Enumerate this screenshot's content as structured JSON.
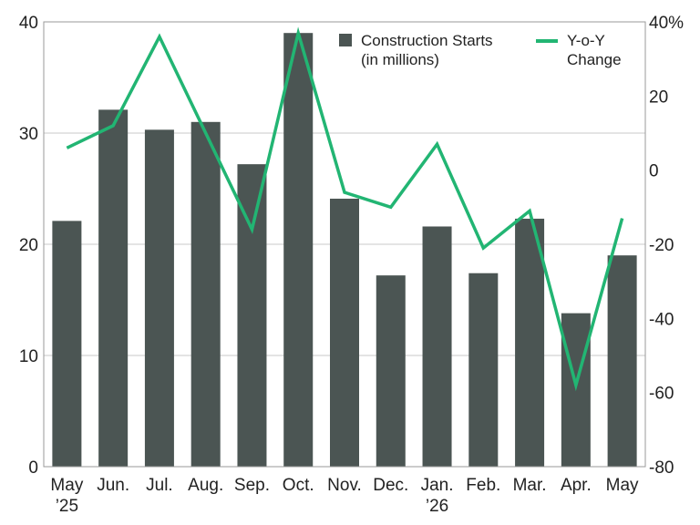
{
  "chart_data": {
    "type": "bar",
    "categories": [
      "May",
      "Jun.",
      "Jul.",
      "Aug.",
      "Sep.",
      "Oct.",
      "Nov.",
      "Dec.",
      "Jan.",
      "Feb.",
      "Mar.",
      "Apr.",
      "May"
    ],
    "category_sublabels": [
      "’25",
      "",
      "",
      "",
      "",
      "",
      "",
      "",
      "’26",
      "",
      "",
      "",
      ""
    ],
    "series": [
      {
        "name": "Construction Starts (in millions)",
        "type": "bar",
        "axis": "left",
        "color": "#4b5553",
        "values": [
          22.1,
          32.1,
          30.3,
          31.0,
          27.2,
          39.0,
          24.1,
          17.2,
          21.6,
          17.4,
          22.3,
          13.8,
          19.0
        ]
      },
      {
        "name": "Y-o-Y Change",
        "type": "line",
        "axis": "right",
        "color": "#22b573",
        "values": [
          6,
          12,
          36,
          10,
          -16,
          37,
          -6,
          -10,
          7,
          -21,
          -11,
          -58,
          -13
        ]
      }
    ],
    "legend_names": [
      "Construction Starts\n(in millions)",
      "Y-o-Y\nChange"
    ],
    "ylim": [
      0,
      40
    ],
    "yticks": [
      "0",
      "10",
      "20",
      "30",
      "40"
    ],
    "y2lim": [
      -80,
      40
    ],
    "y2ticks": [
      "-80",
      "-60",
      "-40",
      "-20",
      "0",
      "20",
      "40%"
    ],
    "grid": "horizontal",
    "legend_position": "top-right"
  }
}
